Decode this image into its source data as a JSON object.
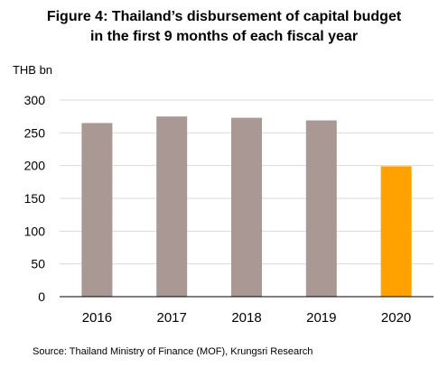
{
  "chart_data": {
    "type": "bar",
    "title_lines": [
      "Figure 4: Thailand’s disbursement of capital budget",
      "in the first 9 months of each fiscal year"
    ],
    "ylabel": "THB bn",
    "xlabel": "",
    "categories": [
      "2016",
      "2017",
      "2018",
      "2019",
      "2020"
    ],
    "values": [
      265,
      275,
      273,
      269,
      199
    ],
    "bar_colors": [
      "#aa9894",
      "#aa9894",
      "#aa9894",
      "#aa9894",
      "#ffa200"
    ],
    "ylim": [
      0,
      300
    ],
    "yticks": [
      0,
      50,
      100,
      150,
      200,
      250,
      300
    ],
    "grid": true,
    "legend": "none"
  },
  "source": "Source: Thailand Ministry of Finance (MOF), Krungsri Research",
  "colors": {
    "bar_default": "#aa9894",
    "bar_highlight": "#ffa200",
    "gridline": "#d9d9d9",
    "axis": "#000000"
  }
}
